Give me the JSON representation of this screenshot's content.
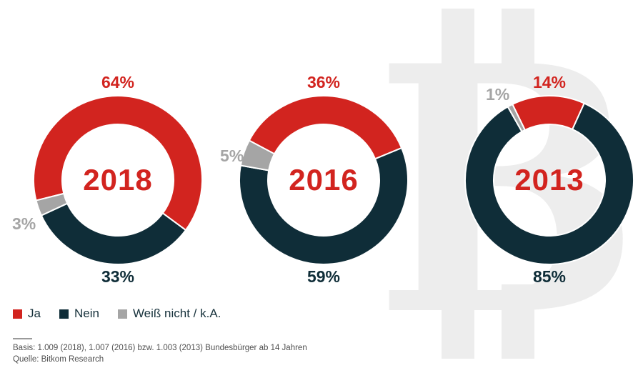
{
  "colors": {
    "ja": "#d2241f",
    "nein": "#0f2d38",
    "weiss_nicht": "#a5a5a5",
    "legend_text": "#15303a",
    "footer_text": "#4f4f4f",
    "watermark": "#ededed",
    "background": "#ffffff"
  },
  "watermark": {
    "symbol": "bitcoin-b",
    "color": "#ededed"
  },
  "chart_data": [
    {
      "type": "pie",
      "donut": true,
      "title": "2018",
      "categories": [
        "Ja",
        "Nein",
        "Weiß nicht / k.A."
      ],
      "values": [
        64,
        33,
        3
      ],
      "color_keys": [
        "ja",
        "nein",
        "weiss_nicht"
      ],
      "display_labels": {
        "ja": "64%",
        "nein": "33%",
        "weiss_nicht": "3%"
      },
      "start_deg": 256,
      "legend_position": "bottom-left"
    },
    {
      "type": "pie",
      "donut": true,
      "title": "2016",
      "categories": [
        "Ja",
        "Nein",
        "Weiß nicht / k.A."
      ],
      "values": [
        36,
        59,
        5
      ],
      "color_keys": [
        "ja",
        "nein",
        "weiss_nicht"
      ],
      "display_labels": {
        "ja": "36%",
        "nein": "59%",
        "weiss_nicht": "5%"
      },
      "start_deg": 298,
      "legend_position": "bottom-left"
    },
    {
      "type": "pie",
      "donut": true,
      "title": "2013",
      "categories": [
        "Ja",
        "Nein",
        "Weiß nicht / k.A."
      ],
      "values": [
        14,
        85,
        1
      ],
      "color_keys": [
        "ja",
        "nein",
        "weiss_nicht"
      ],
      "display_labels": {
        "ja": "14%",
        "nein": "85%",
        "weiss_nicht": "1%"
      },
      "start_deg": 334,
      "legend_position": "bottom-left"
    }
  ],
  "legend": {
    "items": [
      {
        "label": "Ja",
        "color_key": "ja"
      },
      {
        "label": "Nein",
        "color_key": "nein"
      },
      {
        "label": "Weiß nicht / k.A.",
        "color_key": "weiss_nicht"
      }
    ]
  },
  "footer": {
    "basis": "Basis: 1.009 (2018), 1.007 (2016) bzw. 1.003 (2013) Bundesbürger ab 14 Jahren",
    "quelle": "Quelle: Bitkom Research"
  }
}
